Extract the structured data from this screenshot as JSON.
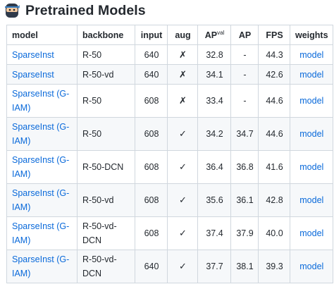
{
  "heading": {
    "icon": "ninja-emoji-icon",
    "title": "Pretrained Models"
  },
  "table": {
    "headers": {
      "model": "model",
      "backbone": "backbone",
      "input": "input",
      "aug": "aug",
      "apval": "AP",
      "apval_sup": "val",
      "ap": "AP",
      "fps": "FPS",
      "weights": "weights"
    },
    "rows": [
      {
        "model": "SparseInst",
        "backbone": "R-50",
        "input": "640",
        "aug": "✗",
        "apval": "32.8",
        "ap": "-",
        "fps": "44.3",
        "weights": "model"
      },
      {
        "model": "SparseInst",
        "backbone": "R-50-vd",
        "input": "640",
        "aug": "✗",
        "apval": "34.1",
        "ap": "-",
        "fps": "42.6",
        "weights": "model"
      },
      {
        "model": "SparseInst (G-IAM)",
        "backbone": "R-50",
        "input": "608",
        "aug": "✗",
        "apval": "33.4",
        "ap": "-",
        "fps": "44.6",
        "weights": "model"
      },
      {
        "model": "SparseInst (G-IAM)",
        "backbone": "R-50",
        "input": "608",
        "aug": "✓",
        "apval": "34.2",
        "ap": "34.7",
        "fps": "44.6",
        "weights": "model"
      },
      {
        "model": "SparseInst (G-IAM)",
        "backbone": "R-50-DCN",
        "input": "608",
        "aug": "✓",
        "apval": "36.4",
        "ap": "36.8",
        "fps": "41.6",
        "weights": "model"
      },
      {
        "model": "SparseInst (G-IAM)",
        "backbone": "R-50-vd",
        "input": "608",
        "aug": "✓",
        "apval": "35.6",
        "ap": "36.1",
        "fps": "42.8",
        "weights": "model"
      },
      {
        "model": "SparseInst (G-IAM)",
        "backbone": "R-50-vd-DCN",
        "input": "608",
        "aug": "✓",
        "apval": "37.4",
        "ap": "37.9",
        "fps": "40.0",
        "weights": "model"
      },
      {
        "model": "SparseInst (G-IAM)",
        "backbone": "R-50-vd-DCN",
        "input": "640",
        "aug": "✓",
        "apval": "37.7",
        "ap": "38.1",
        "fps": "39.3",
        "weights": "model"
      }
    ]
  },
  "colors": {
    "link": "#0969da",
    "border": "#d0d7de",
    "stripe": "#f6f8fa",
    "text": "#24292f"
  }
}
